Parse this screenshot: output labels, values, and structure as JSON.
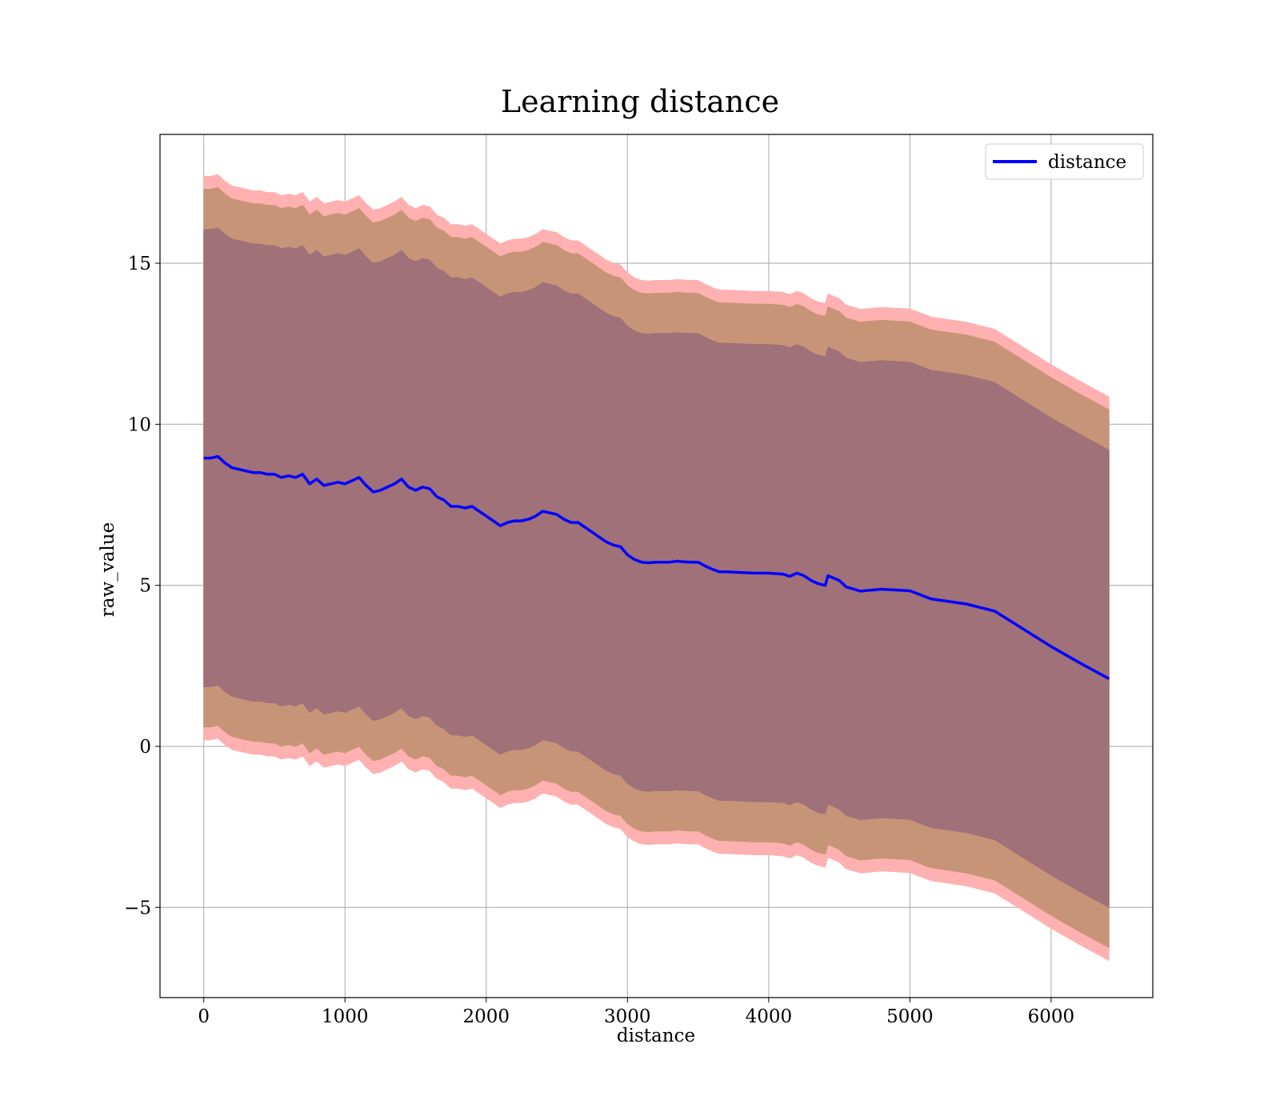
{
  "chart_data": {
    "type": "line",
    "title": "Learning distance",
    "xlabel": "distance",
    "ylabel": "raw_value",
    "xlim": [
      -310,
      6720
    ],
    "ylim": [
      -7.8,
      19.0
    ],
    "xticks": [
      0,
      1000,
      2000,
      3000,
      4000,
      5000,
      6000
    ],
    "xtick_labels": [
      "0",
      "1000",
      "2000",
      "3000",
      "4000",
      "5000",
      "6000"
    ],
    "yticks": [
      -5,
      0,
      5,
      10,
      15
    ],
    "ytick_labels": [
      "−5",
      "0",
      "5",
      "10",
      "15"
    ],
    "grid": true,
    "legend": {
      "position": "top-right",
      "entries": [
        "distance"
      ]
    },
    "colors": {
      "line": "#0000ff",
      "band_outer": "#ffb0b0",
      "band_middle": "#c89478",
      "band_inner": "#a07178",
      "grid": "#b0b0b0"
    },
    "series": [
      {
        "name": "distance",
        "x": [
          0,
          50,
          100,
          150,
          200,
          250,
          300,
          350,
          400,
          450,
          500,
          550,
          600,
          650,
          700,
          750,
          800,
          850,
          900,
          950,
          1000,
          1050,
          1100,
          1150,
          1200,
          1250,
          1300,
          1350,
          1400,
          1450,
          1500,
          1550,
          1600,
          1650,
          1700,
          1750,
          1800,
          1850,
          1900,
          1950,
          2000,
          2050,
          2100,
          2150,
          2200,
          2250,
          2300,
          2350,
          2400,
          2450,
          2500,
          2550,
          2600,
          2650,
          2700,
          2750,
          2800,
          2850,
          2900,
          2950,
          3000,
          3050,
          3100,
          3150,
          3200,
          3250,
          3300,
          3350,
          3400,
          3450,
          3500,
          3550,
          3600,
          3650,
          3700,
          3800,
          3900,
          4000,
          4100,
          4150,
          4200,
          4250,
          4300,
          4350,
          4400,
          4420,
          4500,
          4550,
          4650,
          4800,
          5000,
          5150,
          5400,
          5600,
          5800,
          6000,
          6200,
          6410
        ],
        "y": [
          8.95,
          8.95,
          9.0,
          8.8,
          8.65,
          8.6,
          8.55,
          8.5,
          8.5,
          8.45,
          8.45,
          8.35,
          8.4,
          8.35,
          8.45,
          8.15,
          8.3,
          8.1,
          8.15,
          8.2,
          8.15,
          8.25,
          8.35,
          8.1,
          7.9,
          7.95,
          8.05,
          8.15,
          8.3,
          8.05,
          7.95,
          8.05,
          8.0,
          7.75,
          7.65,
          7.45,
          7.45,
          7.4,
          7.45,
          7.3,
          7.15,
          7.0,
          6.85,
          6.95,
          7.0,
          7.0,
          7.05,
          7.15,
          7.3,
          7.25,
          7.2,
          7.05,
          6.95,
          6.95,
          6.8,
          6.65,
          6.5,
          6.35,
          6.25,
          6.2,
          5.95,
          5.8,
          5.72,
          5.7,
          5.72,
          5.72,
          5.72,
          5.75,
          5.73,
          5.72,
          5.72,
          5.6,
          5.5,
          5.42,
          5.42,
          5.4,
          5.38,
          5.38,
          5.35,
          5.28,
          5.38,
          5.3,
          5.15,
          5.05,
          5.0,
          5.3,
          5.15,
          4.95,
          4.82,
          4.88,
          4.83,
          4.58,
          4.42,
          4.2,
          3.65,
          3.1,
          2.6,
          2.1
        ]
      }
    ],
    "bands": [
      {
        "label": "outer",
        "half_width": [
          8.75,
          8.75,
          8.75,
          8.75,
          8.75,
          8.75,
          8.75,
          8.75,
          8.75,
          8.75,
          8.75,
          8.75,
          8.75,
          8.75,
          8.75,
          8.75,
          8.75,
          8.75,
          8.75,
          8.75,
          8.75,
          8.75,
          8.75,
          8.75,
          8.75,
          8.75,
          8.75,
          8.75,
          8.75,
          8.75,
          8.75,
          8.75,
          8.75,
          8.75,
          8.75,
          8.75,
          8.75,
          8.75,
          8.75,
          8.75,
          8.75,
          8.75,
          8.75,
          8.75,
          8.75,
          8.75,
          8.75,
          8.75,
          8.75,
          8.75,
          8.75,
          8.75,
          8.75,
          8.75,
          8.75,
          8.75,
          8.75,
          8.75,
          8.75,
          8.75,
          8.75,
          8.75,
          8.75,
          8.75,
          8.75,
          8.75,
          8.75,
          8.75,
          8.75,
          8.75,
          8.75,
          8.75,
          8.75,
          8.75,
          8.75,
          8.75,
          8.75,
          8.75,
          8.75,
          8.75,
          8.75,
          8.75,
          8.75,
          8.75,
          8.75,
          8.75,
          8.75,
          8.75,
          8.75,
          8.75,
          8.75,
          8.75,
          8.75,
          8.75,
          8.75,
          8.75,
          8.75,
          8.75
        ]
      },
      {
        "label": "middle",
        "half_width": [
          8.35,
          8.35,
          8.35,
          8.35,
          8.35,
          8.35,
          8.35,
          8.35,
          8.35,
          8.35,
          8.35,
          8.35,
          8.35,
          8.35,
          8.35,
          8.35,
          8.35,
          8.35,
          8.35,
          8.35,
          8.35,
          8.35,
          8.35,
          8.35,
          8.35,
          8.35,
          8.35,
          8.35,
          8.35,
          8.35,
          8.35,
          8.35,
          8.35,
          8.35,
          8.35,
          8.35,
          8.35,
          8.35,
          8.35,
          8.35,
          8.35,
          8.35,
          8.35,
          8.35,
          8.35,
          8.35,
          8.35,
          8.35,
          8.35,
          8.35,
          8.35,
          8.35,
          8.35,
          8.35,
          8.35,
          8.35,
          8.35,
          8.35,
          8.35,
          8.35,
          8.35,
          8.35,
          8.35,
          8.35,
          8.35,
          8.35,
          8.35,
          8.35,
          8.35,
          8.35,
          8.35,
          8.35,
          8.35,
          8.35,
          8.35,
          8.35,
          8.35,
          8.35,
          8.35,
          8.35,
          8.35,
          8.35,
          8.35,
          8.35,
          8.35,
          8.35,
          8.35,
          8.35,
          8.35,
          8.35,
          8.35,
          8.35,
          8.35,
          8.35,
          8.35,
          8.35,
          8.35,
          8.35
        ]
      },
      {
        "label": "inner",
        "half_width": [
          7.1,
          7.1,
          7.1,
          7.1,
          7.1,
          7.1,
          7.1,
          7.1,
          7.1,
          7.1,
          7.1,
          7.1,
          7.1,
          7.1,
          7.1,
          7.1,
          7.1,
          7.1,
          7.1,
          7.1,
          7.1,
          7.1,
          7.1,
          7.1,
          7.1,
          7.1,
          7.1,
          7.1,
          7.1,
          7.1,
          7.1,
          7.1,
          7.1,
          7.1,
          7.1,
          7.1,
          7.1,
          7.1,
          7.1,
          7.1,
          7.1,
          7.1,
          7.1,
          7.1,
          7.1,
          7.1,
          7.1,
          7.1,
          7.1,
          7.1,
          7.1,
          7.1,
          7.1,
          7.1,
          7.1,
          7.1,
          7.1,
          7.1,
          7.1,
          7.1,
          7.1,
          7.1,
          7.1,
          7.1,
          7.1,
          7.1,
          7.1,
          7.1,
          7.1,
          7.1,
          7.1,
          7.1,
          7.1,
          7.1,
          7.1,
          7.1,
          7.1,
          7.1,
          7.1,
          7.1,
          7.1,
          7.1,
          7.1,
          7.1,
          7.1,
          7.1,
          7.1,
          7.1,
          7.1,
          7.1,
          7.1,
          7.1,
          7.1,
          7.1,
          7.1,
          7.1,
          7.1,
          7.1
        ]
      }
    ]
  }
}
